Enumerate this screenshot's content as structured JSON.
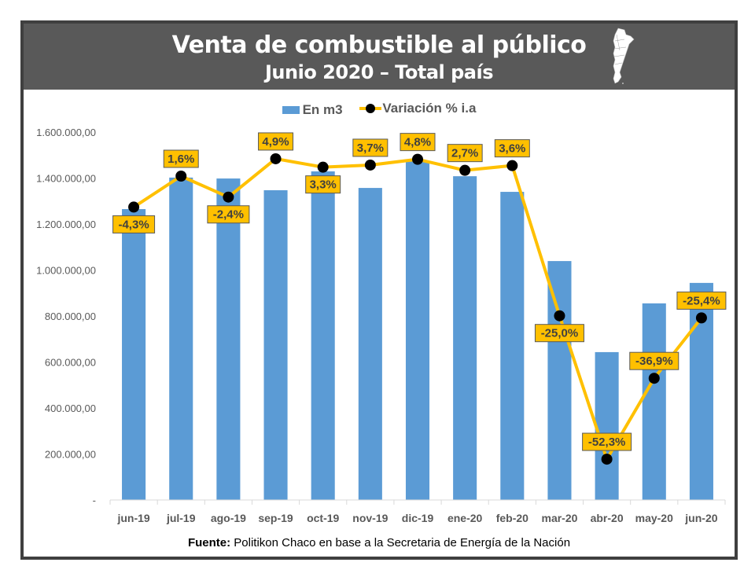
{
  "header": {
    "title": "Venta de combustible al público",
    "subtitle": "Junio 2020 – Total país",
    "icon": "argentina-map-icon"
  },
  "source": {
    "label": "Fuente:",
    "text": " Politikon Chaco en base a la Secretaria de Energía de la Nación"
  },
  "colors": {
    "bar": "#5b9bd5",
    "line": "#ffc000",
    "marker": "#000000",
    "label_bg": "#ffc000",
    "header_bg": "#595959"
  },
  "chart_data": {
    "type": "bar",
    "title": "Venta de combustible al público",
    "subtitle": "Junio 2020 – Total país",
    "xlabel": "",
    "ylabel": "",
    "ylim": [
      0,
      1600000
    ],
    "y2lim": [
      -60,
      10
    ],
    "grid": false,
    "legend_position": "top",
    "y_ticks": [
      "-",
      "200.000,00",
      "400.000,00",
      "600.000,00",
      "800.000,00",
      "1.000.000,00",
      "1.200.000,00",
      "1.400.000,00",
      "1.600.000,00"
    ],
    "categories": [
      "jun-19",
      "jul-19",
      "ago-19",
      "sep-19",
      "oct-19",
      "nov-19",
      "dic-19",
      "ene-20",
      "feb-20",
      "mar-20",
      "abr-20",
      "may-20",
      "jun-20"
    ],
    "series": [
      {
        "name": "En m3",
        "type": "bar",
        "values": [
          1265000,
          1402000,
          1398000,
          1347000,
          1429000,
          1357000,
          1473000,
          1408000,
          1340000,
          1039000,
          643000,
          855000,
          944000
        ]
      },
      {
        "name": "Variación % i.a",
        "type": "line",
        "axis": "secondary",
        "values": [
          -4.3,
          1.6,
          -2.4,
          4.9,
          3.3,
          3.7,
          4.8,
          2.7,
          3.6,
          -25.0,
          -52.3,
          -36.9,
          -25.4
        ],
        "labels": [
          "-4,3%",
          "1,6%",
          "-2,4%",
          "4,9%",
          "3,3%",
          "3,7%",
          "4,8%",
          "2,7%",
          "3,6%",
          "-25,0%",
          "-52,3%",
          "-36,9%",
          "-25,4%"
        ],
        "label_position": [
          "below",
          "above",
          "below",
          "above",
          "below",
          "above",
          "above",
          "above",
          "above",
          "below",
          "above",
          "above",
          "above"
        ]
      }
    ]
  }
}
